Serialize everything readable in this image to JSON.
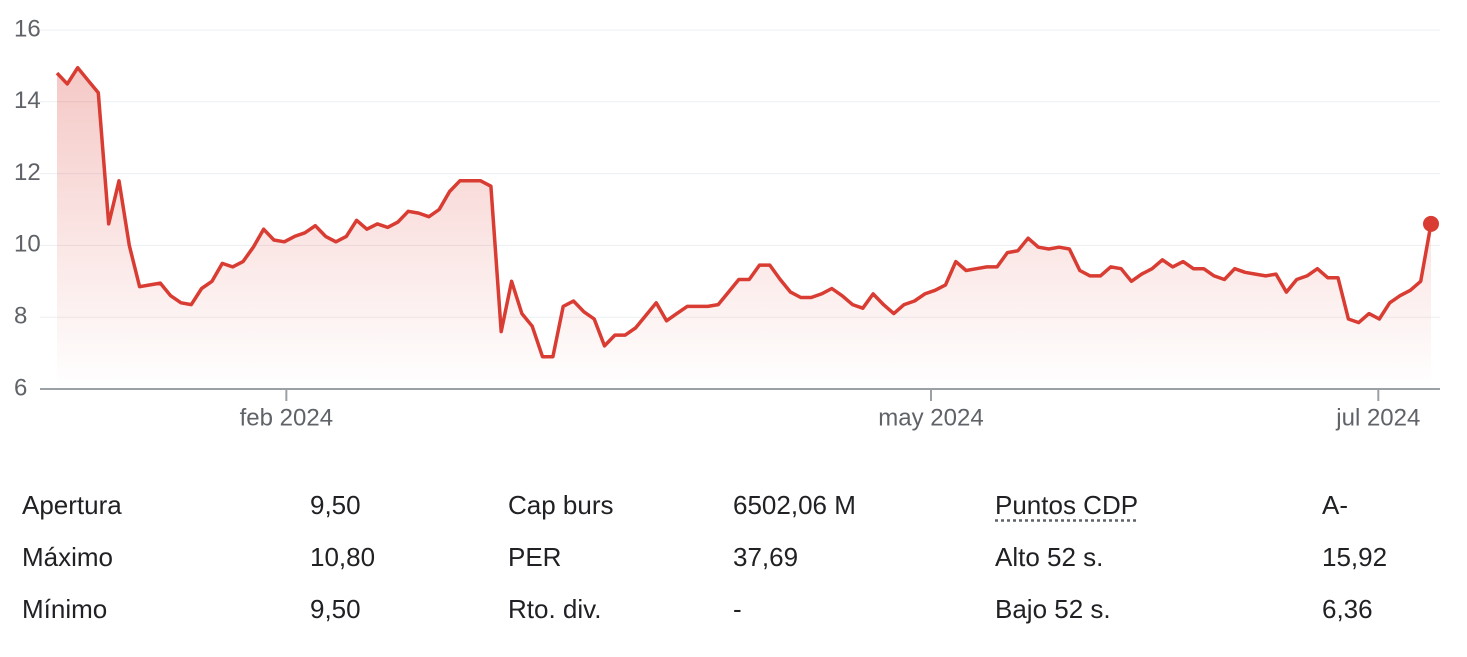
{
  "chart_data": {
    "type": "line",
    "color": "#d93c32",
    "values": [
      14.8,
      14.5,
      14.95,
      14.6,
      14.25,
      10.6,
      11.8,
      10.0,
      8.85,
      8.9,
      8.95,
      8.6,
      8.4,
      8.35,
      8.8,
      9.0,
      9.5,
      9.4,
      9.55,
      9.95,
      10.45,
      10.15,
      10.1,
      10.25,
      10.35,
      10.55,
      10.25,
      10.1,
      10.25,
      10.7,
      10.45,
      10.6,
      10.5,
      10.65,
      10.95,
      10.9,
      10.8,
      11.0,
      11.5,
      11.8,
      11.8,
      11.8,
      11.65,
      7.6,
      9.0,
      8.1,
      7.75,
      6.9,
      6.9,
      8.3,
      8.45,
      8.15,
      7.95,
      7.2,
      7.5,
      7.5,
      7.7,
      8.05,
      8.4,
      7.9,
      8.1,
      8.3,
      8.3,
      8.3,
      8.35,
      8.7,
      9.05,
      9.05,
      9.45,
      9.45,
      9.05,
      8.7,
      8.55,
      8.55,
      8.65,
      8.8,
      8.6,
      8.35,
      8.25,
      8.65,
      8.35,
      8.1,
      8.35,
      8.45,
      8.65,
      8.75,
      8.9,
      9.55,
      9.3,
      9.35,
      9.4,
      9.4,
      9.8,
      9.85,
      10.2,
      9.95,
      9.9,
      9.95,
      9.9,
      9.3,
      9.15,
      9.15,
      9.4,
      9.35,
      9.0,
      9.2,
      9.35,
      9.6,
      9.4,
      9.55,
      9.35,
      9.35,
      9.15,
      9.05,
      9.35,
      9.25,
      9.2,
      9.15,
      9.2,
      8.7,
      9.05,
      9.15,
      9.35,
      9.1,
      9.1,
      7.95,
      7.85,
      8.1,
      7.95,
      8.4,
      8.6,
      8.75,
      9.0,
      10.6
    ],
    "xlim": [
      0,
      133
    ],
    "xticks": [
      {
        "value": 22.2,
        "label": "feb 2024"
      },
      {
        "value": 84.6,
        "label": "may 2024"
      },
      {
        "value": 127.9,
        "label": "jul 2024"
      }
    ],
    "ylim": [
      6,
      16
    ],
    "yticks": [
      6,
      8,
      10,
      12,
      14,
      16
    ],
    "grid": true
  },
  "stats": {
    "rows": [
      [
        "Apertura",
        "9,50",
        "Cap burs",
        "6502,06 M",
        "Puntos CDP",
        "A-"
      ],
      [
        "Máximo",
        "10,80",
        "PER",
        "37,69",
        "Alto 52 s.",
        "15,92"
      ],
      [
        "Mínimo",
        "9,50",
        "Rto. div.",
        "-",
        "Bajo 52 s.",
        "6,36"
      ]
    ]
  }
}
